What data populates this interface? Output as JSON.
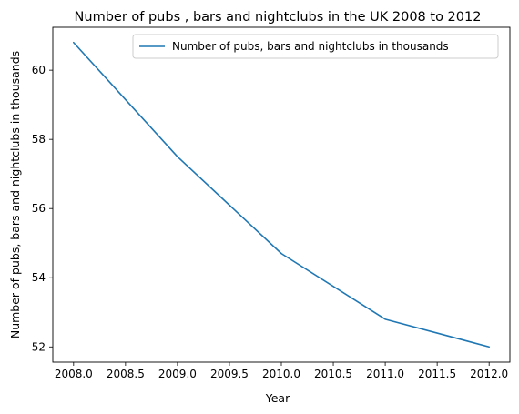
{
  "chart_data": {
    "type": "line",
    "title": "Number of pubs , bars and nightclubs in the UK 2008 to 2012",
    "xlabel": "Year",
    "ylabel": "Number of pubs, bars and nightclubs in thousands",
    "x": [
      2008,
      2009,
      2010,
      2011,
      2012
    ],
    "series": [
      {
        "name": "Number of pubs, bars and nightclubs in thousands",
        "values": [
          60.8,
          57.5,
          54.7,
          52.8,
          52.0
        ],
        "color": "#1f77b4"
      }
    ],
    "xlim": [
      2007.8,
      2012.2
    ],
    "ylim": [
      51.56,
      61.24
    ],
    "xticks": [
      2008.0,
      2008.5,
      2009.0,
      2009.5,
      2010.0,
      2010.5,
      2011.0,
      2011.5,
      2012.0
    ],
    "xtick_labels": [
      "2008.0",
      "2008.5",
      "2009.0",
      "2009.5",
      "2010.0",
      "2010.5",
      "2011.0",
      "2011.5",
      "2012.0"
    ],
    "yticks": [
      52,
      54,
      56,
      58,
      60
    ],
    "ytick_labels": [
      "52",
      "54",
      "56",
      "58",
      "60"
    ],
    "grid": false,
    "legend_position": "upper right"
  }
}
